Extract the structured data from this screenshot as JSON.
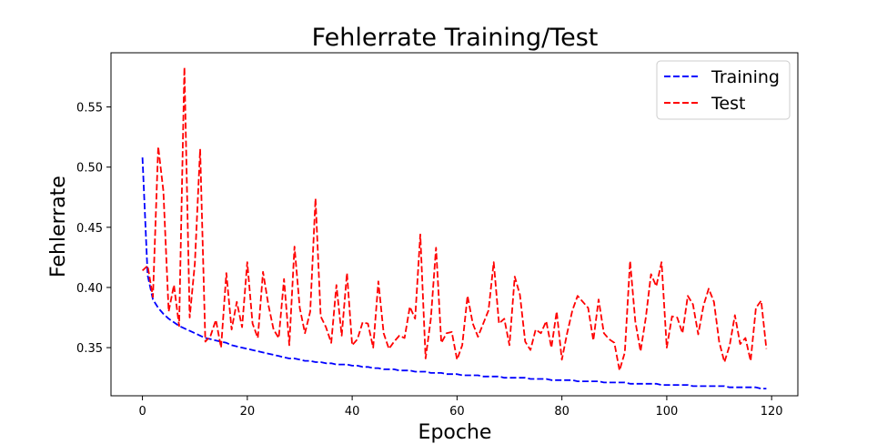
{
  "chart_data": {
    "type": "line",
    "title": "Fehlerrate Training/Test",
    "xlabel": "Epoche",
    "ylabel": "Fehlerrate",
    "xlim": [
      -6,
      125
    ],
    "ylim": [
      0.31,
      0.595
    ],
    "xticks": [
      0,
      20,
      40,
      60,
      80,
      100,
      120
    ],
    "yticks": [
      0.35,
      0.4,
      0.45,
      0.5,
      0.55
    ],
    "ytick_labels": [
      "0.35",
      "0.40",
      "0.45",
      "0.50",
      "0.55"
    ],
    "grid": false,
    "legend_position": "upper right",
    "series": [
      {
        "name": "Training",
        "color": "#0000ff",
        "style": "dashed",
        "x": [
          0,
          1,
          2,
          3,
          4,
          5,
          6,
          7,
          8,
          9,
          10,
          11,
          12,
          13,
          14,
          15,
          16,
          17,
          18,
          19,
          20,
          21,
          22,
          23,
          24,
          25,
          26,
          27,
          28,
          29,
          30,
          31,
          32,
          33,
          34,
          35,
          36,
          37,
          38,
          39,
          40,
          41,
          42,
          43,
          44,
          45,
          46,
          47,
          48,
          49,
          50,
          51,
          52,
          53,
          54,
          55,
          56,
          57,
          58,
          59,
          60,
          61,
          62,
          63,
          64,
          65,
          66,
          67,
          68,
          69,
          70,
          71,
          72,
          73,
          74,
          75,
          76,
          77,
          78,
          79,
          80,
          81,
          82,
          83,
          84,
          85,
          86,
          87,
          88,
          89,
          90,
          91,
          92,
          93,
          94,
          95,
          96,
          97,
          98,
          99,
          100,
          101,
          102,
          103,
          104,
          105,
          106,
          107,
          108,
          109,
          110,
          111,
          112,
          113,
          114,
          115,
          116,
          117,
          118,
          119
        ],
        "values": [
          0.508,
          0.41,
          0.39,
          0.383,
          0.378,
          0.374,
          0.371,
          0.368,
          0.366,
          0.364,
          0.362,
          0.36,
          0.358,
          0.357,
          0.356,
          0.355,
          0.354,
          0.352,
          0.351,
          0.35,
          0.349,
          0.348,
          0.347,
          0.346,
          0.345,
          0.344,
          0.343,
          0.342,
          0.341,
          0.341,
          0.34,
          0.339,
          0.339,
          0.338,
          0.338,
          0.337,
          0.337,
          0.336,
          0.336,
          0.336,
          0.335,
          0.335,
          0.334,
          0.334,
          0.333,
          0.333,
          0.332,
          0.332,
          0.332,
          0.331,
          0.331,
          0.331,
          0.33,
          0.33,
          0.33,
          0.329,
          0.329,
          0.329,
          0.328,
          0.328,
          0.328,
          0.327,
          0.327,
          0.327,
          0.327,
          0.326,
          0.326,
          0.326,
          0.326,
          0.325,
          0.325,
          0.325,
          0.325,
          0.325,
          0.324,
          0.324,
          0.324,
          0.324,
          0.323,
          0.323,
          0.323,
          0.323,
          0.323,
          0.322,
          0.322,
          0.322,
          0.322,
          0.322,
          0.321,
          0.321,
          0.321,
          0.321,
          0.321,
          0.32,
          0.32,
          0.32,
          0.32,
          0.32,
          0.32,
          0.319,
          0.319,
          0.319,
          0.319,
          0.319,
          0.319,
          0.318,
          0.318,
          0.318,
          0.318,
          0.318,
          0.318,
          0.318,
          0.317,
          0.317,
          0.317,
          0.317,
          0.317,
          0.317,
          0.316,
          0.316
        ]
      },
      {
        "name": "Test",
        "color": "#ff0000",
        "style": "dashed",
        "x": [
          0,
          1,
          2,
          3,
          4,
          5,
          6,
          7,
          8,
          9,
          10,
          11,
          12,
          13,
          14,
          15,
          16,
          17,
          18,
          19,
          20,
          21,
          22,
          23,
          24,
          25,
          26,
          27,
          28,
          29,
          30,
          31,
          32,
          33,
          34,
          35,
          36,
          37,
          38,
          39,
          40,
          41,
          42,
          43,
          44,
          45,
          46,
          47,
          48,
          49,
          50,
          51,
          52,
          53,
          54,
          55,
          56,
          57,
          58,
          59,
          60,
          61,
          62,
          63,
          64,
          65,
          66,
          67,
          68,
          69,
          70,
          71,
          72,
          73,
          74,
          75,
          76,
          77,
          78,
          79,
          80,
          81,
          82,
          83,
          84,
          85,
          86,
          87,
          88,
          89,
          90,
          91,
          92,
          93,
          94,
          95,
          96,
          97,
          98,
          99,
          100,
          101,
          102,
          103,
          104,
          105,
          106,
          107,
          108,
          109,
          110,
          111,
          112,
          113,
          114,
          115,
          116,
          117,
          118,
          119
        ],
        "values": [
          0.414,
          0.418,
          0.392,
          0.517,
          0.48,
          0.38,
          0.402,
          0.368,
          0.583,
          0.375,
          0.42,
          0.515,
          0.355,
          0.36,
          0.373,
          0.35,
          0.412,
          0.365,
          0.388,
          0.367,
          0.421,
          0.37,
          0.358,
          0.413,
          0.386,
          0.365,
          0.358,
          0.407,
          0.352,
          0.434,
          0.383,
          0.362,
          0.38,
          0.474,
          0.376,
          0.367,
          0.354,
          0.402,
          0.36,
          0.412,
          0.352,
          0.357,
          0.371,
          0.37,
          0.35,
          0.405,
          0.362,
          0.349,
          0.355,
          0.36,
          0.358,
          0.384,
          0.374,
          0.444,
          0.341,
          0.374,
          0.433,
          0.354,
          0.362,
          0.363,
          0.34,
          0.352,
          0.393,
          0.37,
          0.359,
          0.37,
          0.381,
          0.421,
          0.37,
          0.374,
          0.352,
          0.409,
          0.394,
          0.355,
          0.348,
          0.365,
          0.362,
          0.372,
          0.35,
          0.38,
          0.34,
          0.362,
          0.381,
          0.393,
          0.388,
          0.383,
          0.356,
          0.39,
          0.362,
          0.357,
          0.354,
          0.331,
          0.346,
          0.422,
          0.372,
          0.347,
          0.375,
          0.411,
          0.401,
          0.421,
          0.35,
          0.376,
          0.375,
          0.362,
          0.393,
          0.386,
          0.361,
          0.385,
          0.399,
          0.388,
          0.355,
          0.338,
          0.352,
          0.377,
          0.353,
          0.358,
          0.339,
          0.383,
          0.389,
          0.349
        ]
      }
    ]
  }
}
